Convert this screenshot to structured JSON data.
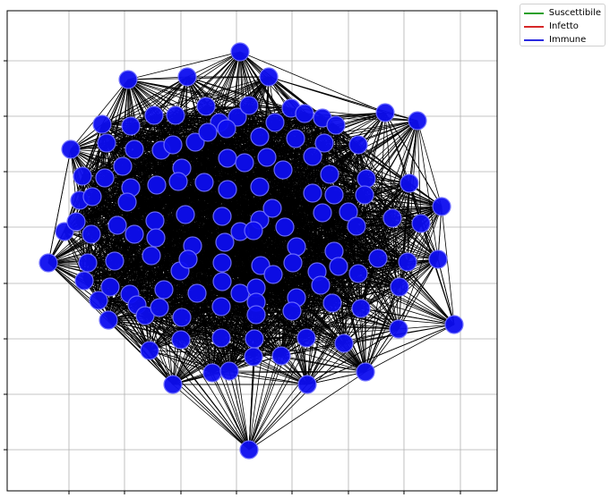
{
  "legend": {
    "items": [
      {
        "label": "Suscettibile",
        "color": "#2ca02c"
      },
      {
        "label": "Infetto",
        "color": "#d62728"
      },
      {
        "label": "Immune",
        "color": "#0000ff"
      }
    ]
  },
  "graph": {
    "node_state": "Immune",
    "node_color": "#0d0df0",
    "edge_color": "#000000",
    "grid": true,
    "tick_labels": false
  }
}
